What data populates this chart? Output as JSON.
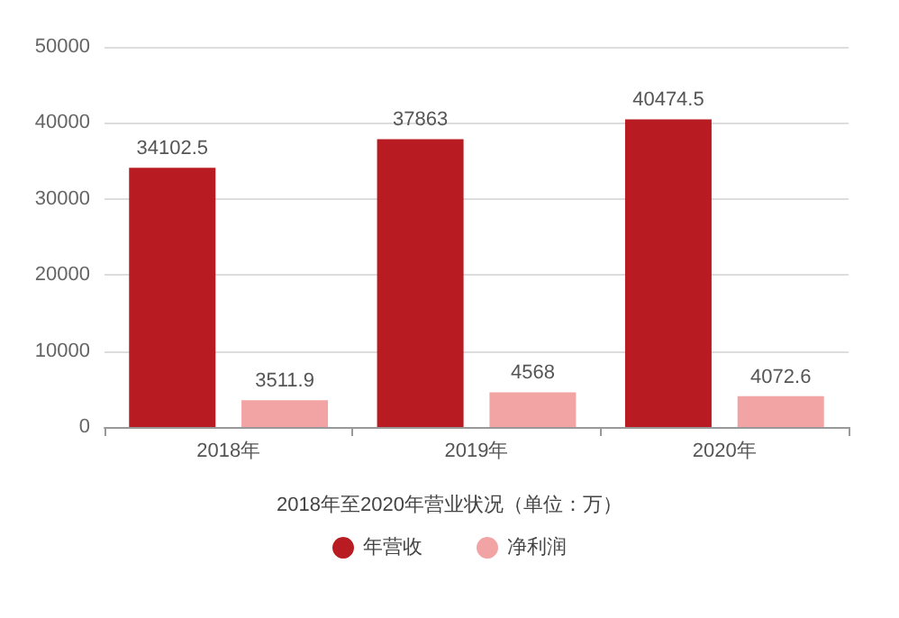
{
  "chart_data": {
    "type": "bar",
    "title": "2018年至2020年营业状况（单位：万）",
    "categories": [
      "2018年",
      "2019年",
      "2020年"
    ],
    "series": [
      {
        "name": "年营收",
        "color": "#b81c22",
        "values": [
          34102.5,
          37863,
          40474.5
        ]
      },
      {
        "name": "净利润",
        "color": "#f2a3a3",
        "values": [
          3511.9,
          4568,
          4072.6
        ]
      }
    ],
    "ylim": [
      0,
      50000
    ],
    "yticks": [
      0,
      10000,
      20000,
      30000,
      40000,
      50000
    ],
    "grid": "y",
    "legend": "bottom",
    "data_labels": true
  }
}
